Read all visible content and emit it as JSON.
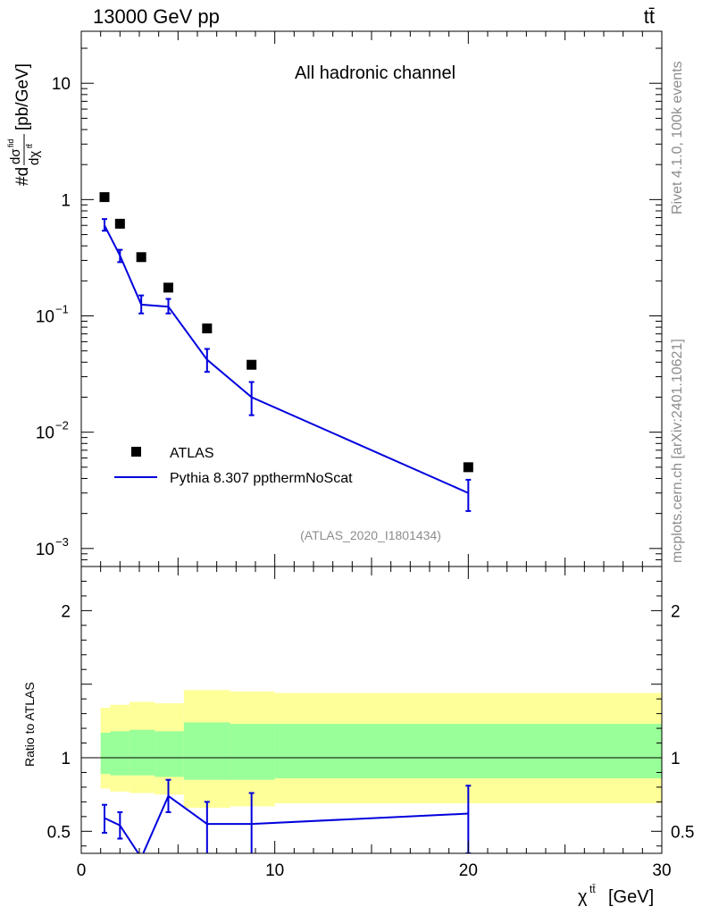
{
  "header": {
    "left_label": "13000 GeV pp",
    "right_label": "tt̄"
  },
  "side_text": {
    "rivet": "Rivet 4.1.0,  100k events",
    "source": "mcplots.cern.ch [arXiv:2401.10621]"
  },
  "chart_data": [
    {
      "type": "scatter",
      "title": "All hadronic channel",
      "watermark": "(ATLAS_2020_I1801434)",
      "ylabel": "#dσ^tfid / dχ^tt̄ [pb/GeV]",
      "yscale": "log",
      "ylim": [
        0.0007,
        28
      ],
      "xlim": [
        0,
        30
      ],
      "ytick_labels": [
        {
          "value": 0.001,
          "label": "10",
          "exp": "−3"
        },
        {
          "value": 0.01,
          "label": "10",
          "exp": "−2"
        },
        {
          "value": 0.1,
          "label": "10",
          "exp": "−1"
        },
        {
          "value": 1,
          "label": "1",
          "exp": ""
        },
        {
          "value": 10,
          "label": "10",
          "exp": ""
        }
      ],
      "legend": [
        {
          "name": "ATLAS",
          "marker": "square",
          "color": "#000000"
        },
        {
          "name": "Pythia 8.307 ppthermNoScat",
          "marker": "line",
          "color": "#0000dd"
        }
      ],
      "series": [
        {
          "name": "ATLAS",
          "x": [
            1.2,
            2.0,
            3.1,
            4.5,
            6.5,
            8.8,
            20.0
          ],
          "y": [
            1.05,
            0.62,
            0.32,
            0.175,
            0.078,
            0.038,
            0.005
          ]
        },
        {
          "name": "Pythia 8.307 ppthermNoScat",
          "x": [
            1.2,
            2.0,
            3.1,
            4.5,
            6.5,
            8.8,
            20.0
          ],
          "y": [
            0.6,
            0.33,
            0.125,
            0.12,
            0.042,
            0.02,
            0.003
          ],
          "yerr_low": [
            0.54,
            0.29,
            0.105,
            0.105,
            0.033,
            0.014,
            0.0021
          ],
          "yerr_high": [
            0.68,
            0.37,
            0.15,
            0.14,
            0.052,
            0.027,
            0.0039
          ]
        }
      ]
    },
    {
      "type": "line",
      "ylabel": "Ratio to ATLAS",
      "xlabel": "χ^tt̄ [GeV]",
      "xlim": [
        0,
        30
      ],
      "ylim": [
        0.35,
        2.3
      ],
      "x_ticks": [
        0,
        10,
        20,
        30
      ],
      "y_ticks": [
        0.5,
        1,
        2
      ],
      "reference_line": 1.0,
      "bands": {
        "bin_edges": [
          1.0,
          1.5,
          2.5,
          3.8,
          5.3,
          7.7,
          10.0,
          30.0
        ],
        "yellow_low": [
          0.79,
          0.77,
          0.76,
          0.75,
          0.66,
          0.67,
          0.69
        ],
        "yellow_high": [
          1.34,
          1.36,
          1.38,
          1.37,
          1.46,
          1.45,
          1.44
        ],
        "green_low": [
          0.89,
          0.88,
          0.88,
          0.87,
          0.85,
          0.85,
          0.86
        ],
        "green_high": [
          1.17,
          1.18,
          1.19,
          1.18,
          1.24,
          1.23,
          1.23
        ]
      },
      "series": [
        {
          "name": "Pythia 8.307 ppthermNoScat",
          "x": [
            1.2,
            2.0,
            3.1,
            4.5,
            6.5,
            8.8,
            20.0
          ],
          "y": [
            0.59,
            0.54,
            0.32,
            0.74,
            0.55,
            0.55,
            0.62
          ],
          "yerr_low": [
            0.49,
            0.45,
            0.32,
            0.63,
            0.34,
            0.34,
            0.35
          ],
          "yerr_high": [
            0.68,
            0.63,
            0.32,
            0.85,
            0.7,
            0.76,
            0.81
          ]
        }
      ]
    }
  ]
}
